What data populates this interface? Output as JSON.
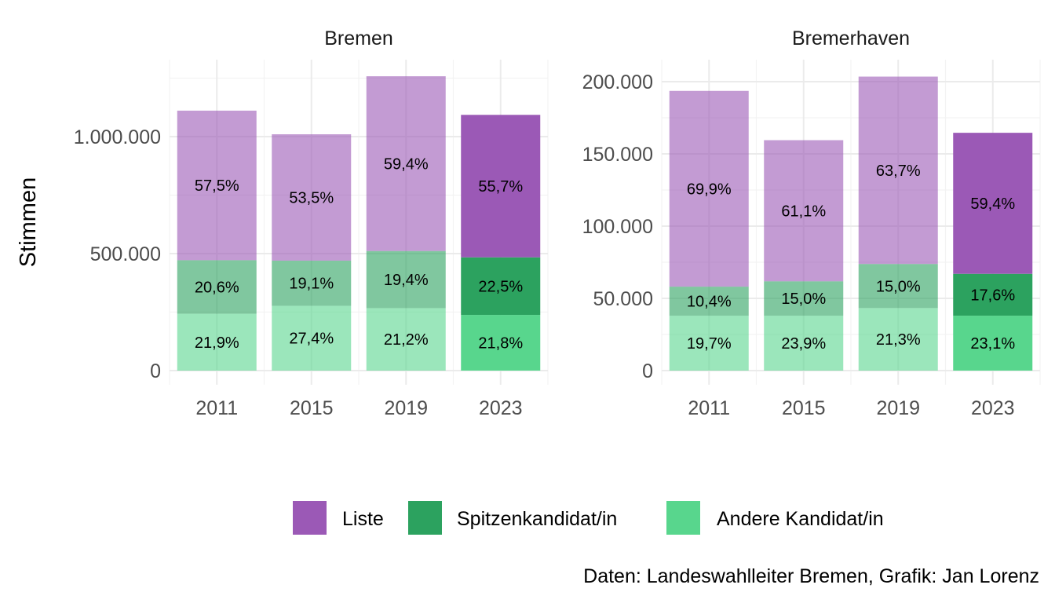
{
  "chart_data": {
    "type": "bar",
    "stacked": true,
    "facet_layout": "2 panels side by side, free y scales",
    "y_axis_title": "Stimmen",
    "categories": [
      "2011",
      "2015",
      "2019",
      "2023"
    ],
    "highlight_category": "2023",
    "highlight_note": "2023 bars drawn fully opaque, earlier years semi-transparent",
    "legend_position": "bottom",
    "grid": true,
    "series_order_bottom_to_top": [
      "Andere Kandidat/in",
      "Spitzenkandidat/in",
      "Liste"
    ],
    "legend": [
      {
        "name": "Liste",
        "color": "#9b59b6"
      },
      {
        "name": "Spitzenkandidat/in",
        "color": "#2ca25f"
      },
      {
        "name": "Andere Kandidat/in",
        "color": "#58d68d"
      }
    ],
    "caption": "Daten: Landeswahlleiter Bremen, Grafik: Jan Lorenz",
    "panels": [
      {
        "title": "Bremen",
        "ylim": [
          0,
          1300000
        ],
        "y_ticks": [
          0,
          500000,
          1000000
        ],
        "y_tick_labels": [
          "0",
          "500.000",
          "1.000.000"
        ],
        "series": [
          {
            "name": "Andere Kandidat/in",
            "values": [
              243000,
              277000,
              267000,
              238000
            ],
            "labels": [
              "21,9%",
              "27,4%",
              "21,2%",
              "21,8%"
            ]
          },
          {
            "name": "Spitzenkandidat/in",
            "values": [
              229000,
              193000,
              244000,
              246000
            ],
            "labels": [
              "20,6%",
              "19,1%",
              "19,4%",
              "22,5%"
            ]
          },
          {
            "name": "Liste",
            "values": [
              639000,
              540000,
              747000,
              609000
            ],
            "labels": [
              "57,5%",
              "53,5%",
              "59,4%",
              "55,7%"
            ]
          }
        ]
      },
      {
        "title": "Bremerhaven",
        "ylim": [
          0,
          213000
        ],
        "y_ticks": [
          0,
          50000,
          100000,
          150000,
          200000
        ],
        "y_tick_labels": [
          "0",
          "50.000",
          "100.000",
          "150.000",
          "200.000"
        ],
        "series": [
          {
            "name": "Andere Kandidat/in",
            "values": [
              38000,
              38000,
              43300,
              38000
            ],
            "labels": [
              "19,7%",
              "23,9%",
              "21,3%",
              "23,1%"
            ]
          },
          {
            "name": "Spitzenkandidat/in",
            "values": [
              20100,
              23800,
              30500,
              29000
            ],
            "labels": [
              "10,4%",
              "15,0%",
              "15,0%",
              "17,6%"
            ]
          },
          {
            "name": "Liste",
            "values": [
              135500,
              97700,
              129700,
              97600
            ],
            "labels": [
              "69,9%",
              "61,1%",
              "63,7%",
              "59,4%"
            ]
          }
        ]
      }
    ]
  }
}
